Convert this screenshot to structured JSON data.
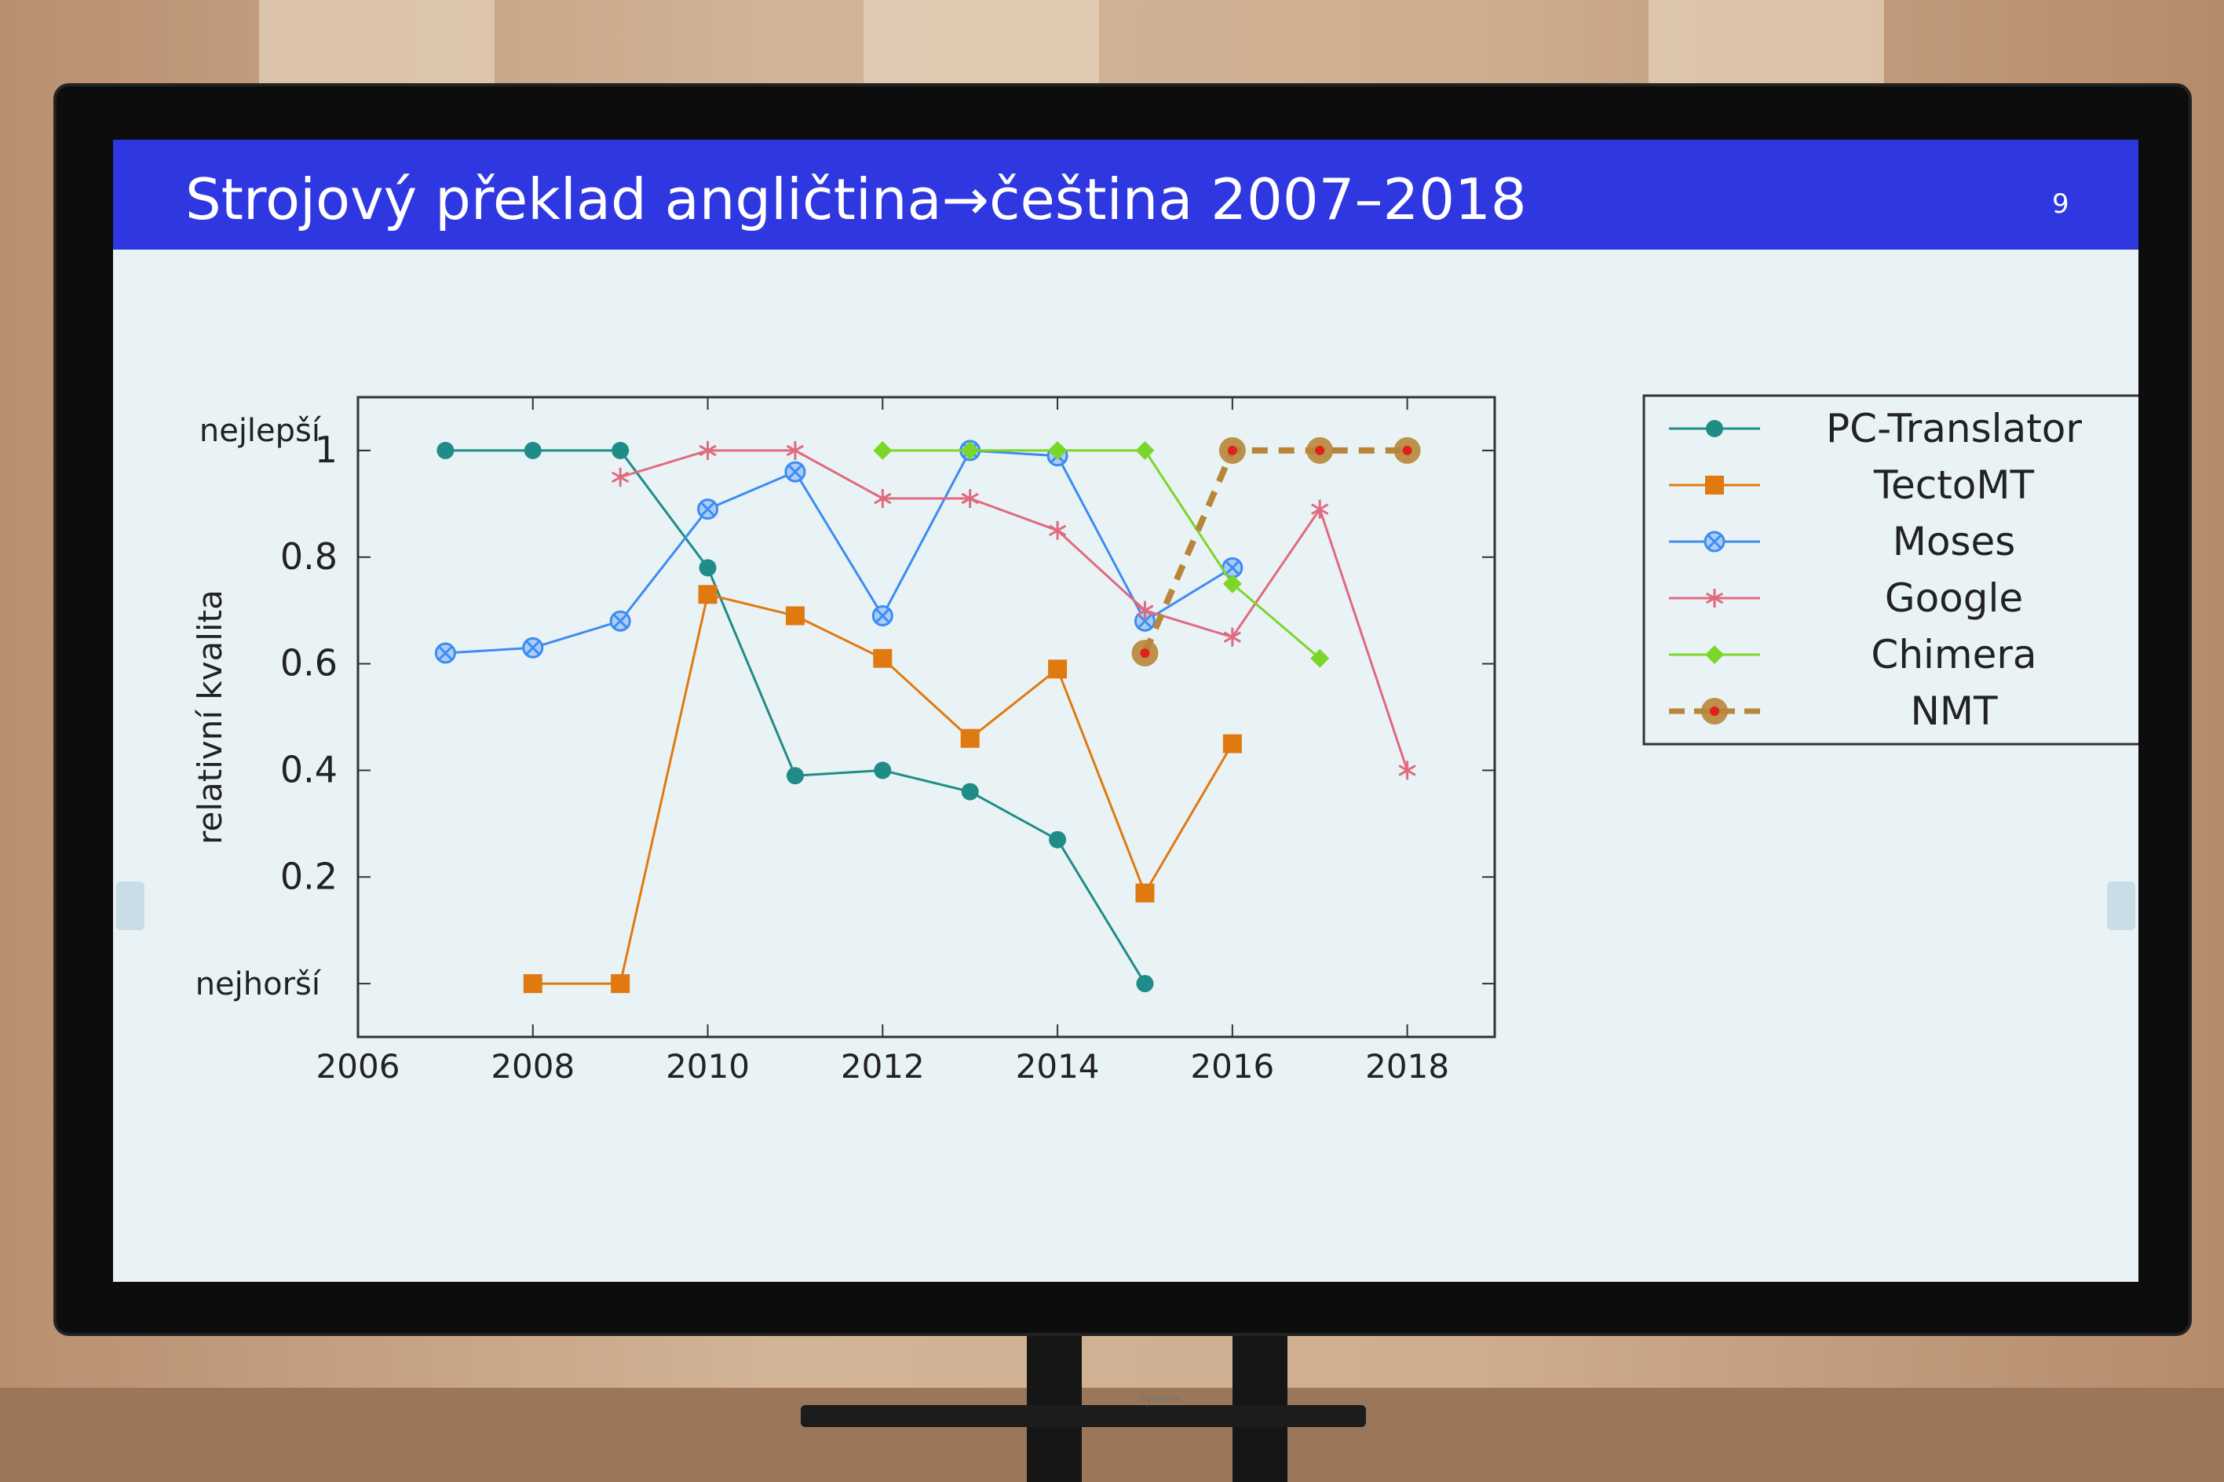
{
  "slide": {
    "title": "Strojový překlad angličtina→čeština 2007–2018",
    "number": "9",
    "brand": "iiyama"
  },
  "chart_data": {
    "type": "line",
    "title": "",
    "xlabel": "",
    "ylabel": "relativní kvalita",
    "xlim": [
      2006,
      2019
    ],
    "ylim": [
      -0.1,
      1.1
    ],
    "x_ticks": [
      "2006",
      "2008",
      "2010",
      "2012",
      "2014",
      "2016",
      "2018"
    ],
    "y_ticks": [
      "0.2",
      "0.4",
      "0.6",
      "0.8",
      "1"
    ],
    "y_extra_labels": {
      "top": "nejlepší",
      "bottom": "nejhorší"
    },
    "legend_position": "outside-right",
    "series": [
      {
        "name": "PC-Translator",
        "color": "#1f8c88",
        "marker": "circle",
        "dash": false,
        "x": [
          2007,
          2008,
          2009,
          2010,
          2011,
          2012,
          2013,
          2014,
          2015
        ],
        "y": [
          1.0,
          1.0,
          1.0,
          0.78,
          0.39,
          0.4,
          0.36,
          0.27,
          0.0
        ]
      },
      {
        "name": "TectoMT",
        "color": "#e07a10",
        "marker": "square",
        "dash": false,
        "x": [
          2008,
          2009,
          2010,
          2011,
          2012,
          2013,
          2014,
          2015,
          2016
        ],
        "y": [
          0.0,
          0.0,
          0.73,
          0.69,
          0.61,
          0.46,
          0.59,
          0.17,
          0.45
        ]
      },
      {
        "name": "Moses",
        "color": "#3d8cf0",
        "marker": "circle-x",
        "dash": false,
        "x": [
          2007,
          2008,
          2009,
          2010,
          2011,
          2012,
          2013,
          2014,
          2015,
          2016
        ],
        "y": [
          0.62,
          0.63,
          0.68,
          0.89,
          0.96,
          0.69,
          1.0,
          0.99,
          0.68,
          0.78
        ]
      },
      {
        "name": "Google",
        "color": "#e06a80",
        "marker": "star",
        "dash": false,
        "x": [
          2009,
          2010,
          2011,
          2012,
          2013,
          2014,
          2015,
          2016,
          2017,
          2018
        ],
        "y": [
          0.95,
          1.0,
          1.0,
          0.91,
          0.91,
          0.85,
          0.7,
          0.65,
          0.89,
          0.4
        ]
      },
      {
        "name": "Chimera",
        "color": "#7cd62a",
        "marker": "diamond",
        "dash": false,
        "x": [
          2012,
          2013,
          2014,
          2015,
          2016,
          2017
        ],
        "y": [
          1.0,
          1.0,
          1.0,
          1.0,
          0.75,
          0.61
        ]
      },
      {
        "name": "NMT",
        "color": "#b8863a",
        "marker": "dot-red",
        "dash": true,
        "x": [
          2015,
          2016,
          2017,
          2018
        ],
        "y": [
          0.62,
          1.0,
          1.0,
          1.0
        ]
      }
    ]
  }
}
